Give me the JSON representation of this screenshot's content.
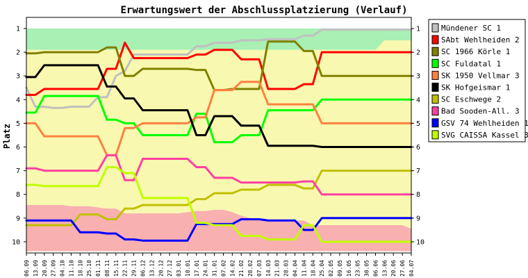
{
  "chart_data": {
    "type": "line",
    "title": "Erwartungswert der Abschlussplatzierung (Verlauf)",
    "ylabel": "Platz",
    "xlabel": "",
    "ylim": [
      1,
      10
    ],
    "y_inverted": true,
    "y_ticks": [
      "1",
      "2",
      "3",
      "4",
      "5",
      "6",
      "7",
      "8",
      "9",
      "10"
    ],
    "legend_position": "right",
    "grid": false,
    "x": [
      "06.09",
      "13.09",
      "20.09",
      "27.09",
      "04.10",
      "11.10",
      "18.10",
      "25.10",
      "01.11",
      "08.11",
      "15.11",
      "22.11",
      "29.11",
      "06.12",
      "13.12",
      "20.12",
      "27.12",
      "03.01",
      "10.01",
      "17.01",
      "24.01",
      "31.01",
      "07.02",
      "14.02",
      "21.02",
      "28.02",
      "07.03",
      "14.03",
      "21.03",
      "28.03",
      "04.04",
      "11.04",
      "18.04",
      "25.04",
      "02.05",
      "09.05",
      "16.05",
      "23.05",
      "30.05",
      "06.06",
      "13.06",
      "20.06",
      "27.06",
      "04.07"
    ],
    "background_bands": [
      {
        "color": "#a8f0b4",
        "top": [
          1,
          1,
          1,
          1,
          1,
          1,
          1,
          1,
          1,
          1,
          1,
          1,
          1,
          1,
          1,
          1,
          1,
          1,
          1,
          1,
          1,
          1,
          1,
          1,
          1,
          1,
          1,
          1,
          1,
          1,
          1,
          1,
          1,
          1,
          1,
          1,
          1,
          1,
          1,
          1,
          1,
          1,
          1,
          1
        ],
        "bottom": [
          1.9,
          1.9,
          1.9,
          1.9,
          1.9,
          1.9,
          1.9,
          1.9,
          1.9,
          1.9,
          1.9,
          1.9,
          1.9,
          1.9,
          1.9,
          1.9,
          1.9,
          1.9,
          1.9,
          1.9,
          1.9,
          1.9,
          1.9,
          1.9,
          1.9,
          1.9,
          1.9,
          1.9,
          1.9,
          1.9,
          1.9,
          1.9,
          1.9,
          1.9,
          1.9,
          1.9,
          1.9,
          1.9,
          1.9,
          1.9,
          1.5,
          1.5,
          1.5,
          1.5
        ]
      },
      {
        "color": "#f8f8b0",
        "top": [
          1.9,
          1.9,
          1.9,
          1.9,
          1.9,
          1.9,
          1.9,
          1.9,
          1.9,
          1.9,
          1.9,
          1.9,
          1.9,
          1.9,
          1.9,
          1.9,
          1.9,
          1.9,
          1.9,
          1.9,
          1.9,
          1.9,
          1.9,
          1.9,
          1.9,
          1.9,
          1.9,
          1.9,
          1.9,
          1.9,
          1.9,
          1.9,
          1.9,
          1.9,
          1.9,
          1.9,
          1.9,
          1.9,
          1.9,
          1.9,
          1.5,
          1.5,
          1.5,
          1.5
        ],
        "bottom": [
          8.45,
          8.45,
          8.45,
          8.45,
          8.45,
          8.5,
          8.5,
          8.5,
          8.55,
          8.6,
          8.6,
          8.8,
          8.8,
          8.8,
          8.8,
          8.8,
          8.8,
          8.8,
          8.75,
          8.7,
          8.7,
          8.65,
          8.65,
          8.75,
          8.9,
          9.0,
          9.1,
          9.1,
          9.1,
          9.1,
          9.1,
          9.1,
          9.3,
          9.3,
          9.3,
          9.3,
          9.3,
          9.3,
          9.3,
          9.3,
          9.3,
          9.3,
          9.3,
          9.45
        ]
      },
      {
        "color": "#f8b0b0",
        "top": [
          8.45,
          8.45,
          8.45,
          8.45,
          8.45,
          8.5,
          8.5,
          8.5,
          8.55,
          8.6,
          8.6,
          8.8,
          8.8,
          8.8,
          8.8,
          8.8,
          8.8,
          8.8,
          8.75,
          8.7,
          8.7,
          8.65,
          8.65,
          8.75,
          8.9,
          9.0,
          9.1,
          9.1,
          9.1,
          9.1,
          9.1,
          9.1,
          9.3,
          9.3,
          9.3,
          9.3,
          9.3,
          9.3,
          9.3,
          9.3,
          9.3,
          9.3,
          9.3,
          9.45
        ],
        "bottom": [
          10.4,
          10.4,
          10.4,
          10.4,
          10.4,
          10.4,
          10.4,
          10.4,
          10.4,
          10.4,
          10.4,
          10.4,
          10.4,
          10.4,
          10.4,
          10.4,
          10.4,
          10.4,
          10.4,
          10.4,
          10.4,
          10.4,
          10.4,
          10.4,
          10.4,
          10.4,
          10.4,
          10.4,
          10.4,
          10.4,
          10.4,
          10.4,
          10.4,
          10.4,
          10.4,
          10.4,
          10.4,
          10.4,
          10.4,
          10.4,
          10.4,
          10.4,
          10.4,
          10.4
        ]
      }
    ],
    "series": [
      {
        "name": "Mündener SC 1",
        "color": "#c0c0c0",
        "values": [
          3.5,
          4.3,
          4.3,
          4.35,
          4.35,
          4.3,
          4.3,
          4.3,
          3.9,
          3.9,
          3.0,
          2.8,
          2.1,
          2.1,
          2.1,
          2.1,
          2.1,
          2.1,
          2.1,
          1.75,
          1.75,
          1.6,
          1.6,
          1.6,
          1.5,
          1.5,
          1.5,
          1.45,
          1.45,
          1.45,
          1.45,
          1.3,
          1.3,
          1.05,
          1.05,
          1.05,
          1.05,
          1.05,
          1.05,
          1.05,
          1.05,
          1.05,
          1.05,
          1.05
        ]
      },
      {
        "name": "SAbt Wehlheiden 2",
        "color": "#ff0000",
        "values": [
          3.8,
          3.8,
          3.55,
          3.55,
          3.55,
          3.55,
          3.55,
          3.55,
          3.55,
          2.7,
          2.7,
          1.6,
          2.25,
          2.25,
          2.25,
          2.25,
          2.25,
          2.25,
          2.25,
          2.1,
          2.1,
          1.9,
          1.9,
          1.9,
          2.3,
          2.3,
          2.3,
          3.55,
          3.55,
          3.55,
          3.55,
          3.35,
          3.35,
          2.0,
          2.0,
          2.0,
          2.0,
          2.0,
          2.0,
          2.0,
          2.0,
          2.0,
          2.0,
          2.0
        ]
      },
      {
        "name": "SC 1966 Körle 1",
        "color": "#808000",
        "values": [
          2.05,
          2.05,
          2.0,
          2.0,
          2.0,
          2.0,
          2.0,
          2.0,
          2.0,
          1.8,
          1.8,
          3.0,
          3.0,
          2.7,
          2.7,
          2.7,
          2.7,
          2.7,
          2.7,
          2.75,
          2.75,
          3.6,
          3.6,
          3.55,
          3.55,
          3.55,
          3.55,
          1.55,
          1.55,
          1.55,
          1.55,
          1.95,
          1.95,
          3.0,
          3.0,
          3.0,
          3.0,
          3.0,
          3.0,
          3.0,
          3.0,
          3.0,
          3.0,
          3.0
        ]
      },
      {
        "name": "SC Fuldatal 1",
        "color": "#00ff00",
        "values": [
          4.55,
          4.55,
          3.85,
          3.85,
          3.85,
          3.85,
          3.85,
          3.85,
          3.85,
          4.85,
          4.85,
          5.0,
          5.0,
          5.5,
          5.5,
          5.5,
          5.5,
          5.5,
          5.5,
          4.6,
          4.6,
          5.8,
          5.8,
          5.8,
          5.5,
          5.5,
          5.5,
          4.45,
          4.45,
          4.45,
          4.45,
          4.45,
          4.45,
          4.0,
          4.0,
          4.0,
          4.0,
          4.0,
          4.0,
          4.0,
          4.0,
          4.0,
          4.0,
          4.0
        ]
      },
      {
        "name": "SK 1950 Vellmar 3",
        "color": "#ff8040",
        "values": [
          5.0,
          5.0,
          5.55,
          5.55,
          5.55,
          5.55,
          5.55,
          5.55,
          5.55,
          6.35,
          6.35,
          5.2,
          5.2,
          5.0,
          5.0,
          5.0,
          5.0,
          5.0,
          5.0,
          4.75,
          4.75,
          3.6,
          3.6,
          3.6,
          3.25,
          3.25,
          3.25,
          4.2,
          4.2,
          4.2,
          4.2,
          4.2,
          4.2,
          5.0,
          5.0,
          5.0,
          5.0,
          5.0,
          5.0,
          5.0,
          5.0,
          5.0,
          5.0,
          5.0
        ]
      },
      {
        "name": "SK Hofgeismar 1",
        "color": "#000000",
        "values": [
          3.05,
          3.05,
          2.55,
          2.55,
          2.55,
          2.55,
          2.55,
          2.55,
          2.55,
          3.45,
          3.45,
          3.95,
          3.95,
          4.45,
          4.45,
          4.45,
          4.45,
          4.45,
          4.45,
          5.5,
          5.5,
          4.7,
          4.7,
          4.7,
          5.1,
          5.1,
          5.1,
          5.95,
          5.95,
          5.95,
          5.95,
          5.95,
          5.95,
          6.0,
          6.0,
          6.0,
          6.0,
          6.0,
          6.0,
          6.0,
          6.0,
          6.0,
          6.0,
          6.0
        ]
      },
      {
        "name": "SC Eschwege 2",
        "color": "#c0c000",
        "values": [
          9.3,
          9.3,
          9.3,
          9.3,
          9.3,
          9.3,
          8.85,
          8.85,
          8.85,
          9.05,
          9.05,
          8.6,
          8.6,
          8.45,
          8.45,
          8.45,
          8.45,
          8.45,
          8.45,
          8.2,
          8.2,
          7.95,
          7.95,
          7.95,
          7.8,
          7.8,
          7.8,
          7.6,
          7.6,
          7.6,
          7.6,
          7.75,
          7.75,
          7.0,
          7.0,
          7.0,
          7.0,
          7.0,
          7.0,
          7.0,
          7.0,
          7.0,
          7.0,
          7.0
        ]
      },
      {
        "name": "Bad Sooden-All. 3",
        "color": "#ff40a0",
        "values": [
          6.9,
          6.9,
          7.0,
          7.0,
          7.0,
          7.0,
          7.0,
          7.0,
          7.0,
          6.35,
          6.35,
          7.4,
          7.4,
          6.5,
          6.5,
          6.5,
          6.5,
          6.5,
          6.5,
          6.85,
          6.85,
          7.3,
          7.3,
          7.3,
          7.5,
          7.5,
          7.5,
          7.5,
          7.5,
          7.5,
          7.5,
          7.45,
          7.45,
          8.0,
          8.0,
          8.0,
          8.0,
          8.0,
          8.0,
          8.0,
          8.0,
          8.0,
          8.0,
          8.0
        ]
      },
      {
        "name": "GSV 74 Wehlheiden 1",
        "color": "#0000ff",
        "values": [
          9.1,
          9.1,
          9.1,
          9.1,
          9.1,
          9.1,
          9.6,
          9.6,
          9.6,
          9.65,
          9.65,
          9.9,
          9.9,
          9.95,
          9.95,
          9.95,
          9.95,
          9.95,
          9.95,
          9.25,
          9.25,
          9.25,
          9.25,
          9.25,
          9.05,
          9.05,
          9.05,
          9.1,
          9.1,
          9.1,
          9.1,
          9.5,
          9.5,
          9.0,
          9.0,
          9.0,
          9.0,
          9.0,
          9.0,
          9.0,
          9.0,
          9.0,
          9.0,
          9.0
        ]
      },
      {
        "name": "SVG CAISSA Kassel 3",
        "color": "#c0ff00",
        "values": [
          7.6,
          7.6,
          7.65,
          7.65,
          7.65,
          7.65,
          7.65,
          7.65,
          7.65,
          6.85,
          6.85,
          7.1,
          7.1,
          8.15,
          8.15,
          8.15,
          8.15,
          8.15,
          8.15,
          9.2,
          9.2,
          9.3,
          9.3,
          9.3,
          9.75,
          9.75,
          9.75,
          9.9,
          9.9,
          9.9,
          9.9,
          9.3,
          9.3,
          10.0,
          10.0,
          10.0,
          10.0,
          10.0,
          10.0,
          10.0,
          10.0,
          10.0,
          10.0,
          10.0
        ]
      }
    ]
  }
}
